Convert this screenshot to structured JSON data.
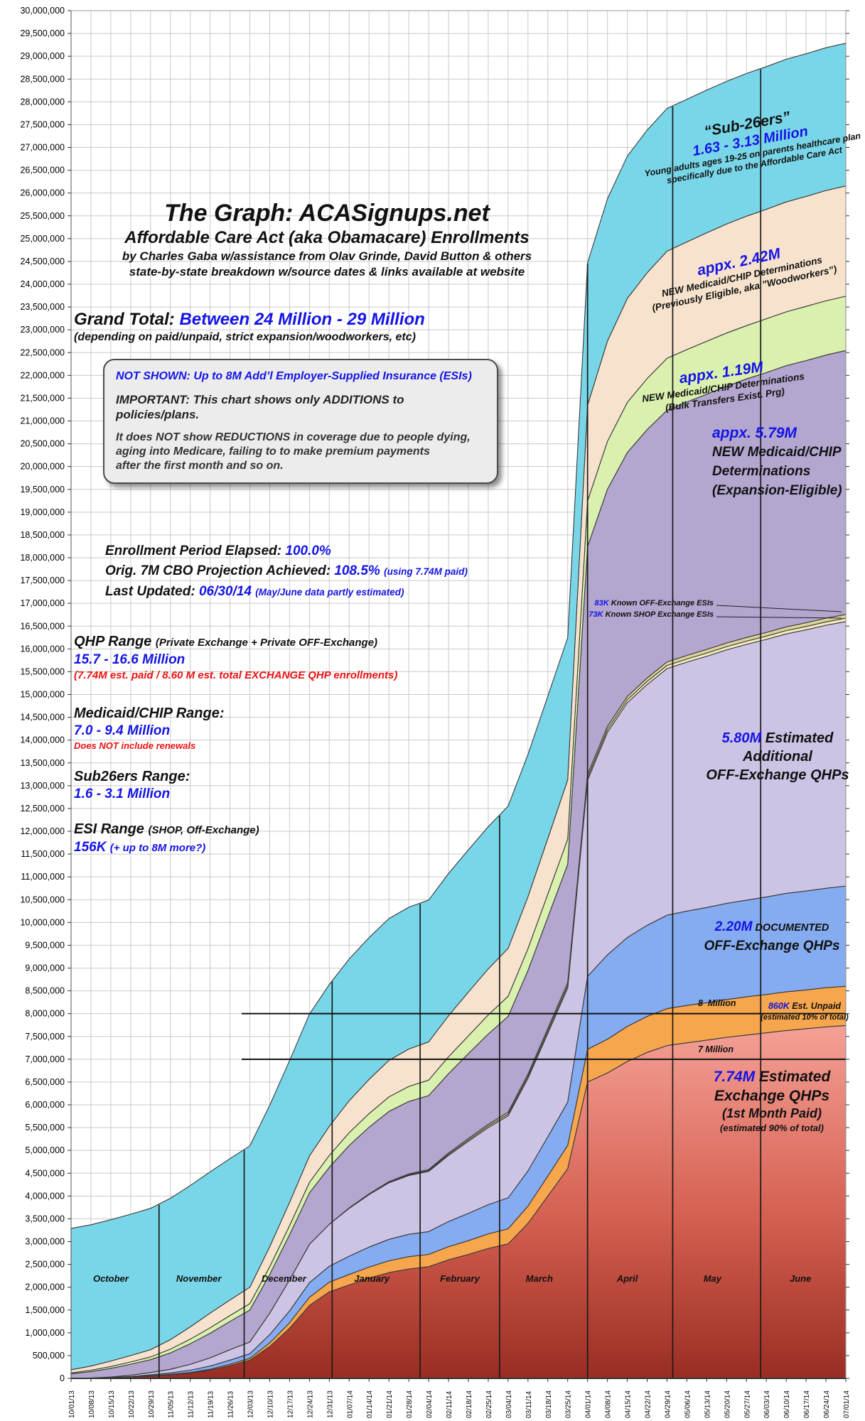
{
  "title_block": {
    "line1": "The Graph:   ACASignups.net",
    "line2": "Affordable Care Act (aka Obamacare) Enrollments",
    "line3": "by Charles Gaba w/assistance from Olav Grinde, David Button & others",
    "line4": "state-by-state breakdown w/source dates & links available at website"
  },
  "grand_total": {
    "label": "Grand Total: ",
    "value": "Between 24 Million - 29 Million",
    "sub": "(depending on paid/unpaid, strict expansion/woodworkers, etc)"
  },
  "note_box": {
    "line1": "NOT SHOWN: Up to 8M Add’l Employer-Supplied Insurance (ESIs)",
    "line2": "IMPORTANT: This chart shows only ADDITIONS to policies/plans.",
    "para1": "It does NOT show REDUCTIONS in coverage due to people dying,",
    "para2": "aging into Medicare, failing to to make premium payments",
    "para3": "after the first month and so on."
  },
  "stats": {
    "l1a": "Enrollment Period Elapsed: ",
    "l1b": "100.0%",
    "l2a": "Orig. 7M CBO Projection Achieved: ",
    "l2b": "108.5% ",
    "l2c": "(using 7.74M paid)",
    "l3a": "Last Updated: ",
    "l3b": "06/30/14 ",
    "l3c": "(May/June data partly estimated)"
  },
  "ranges": {
    "qhp": {
      "head": "QHP Range ",
      "head2": "(Private Exchange + Private OFF-Exchange)",
      "value": "15.7 - 16.6 Million",
      "note": "(7.74M est. paid / 8.60 M est. total EXCHANGE QHP enrollments)"
    },
    "medicaid": {
      "head": "Medicaid/CHIP Range:",
      "value": "7.0 - 9.4 Million",
      "note": "Does NOT include renewals"
    },
    "sub26": {
      "head": "Sub26ers Range:",
      "value": "1.6 - 3.1 Million"
    },
    "esi": {
      "head": "ESI Range ",
      "head2": "(SHOP, Off-Exchange)",
      "value": "156K ",
      "value2": "(+ up to 8M more?)"
    }
  },
  "band_labels": {
    "sub26": {
      "quote": "“Sub-26ers”",
      "value": "1.63 - 3.13 Million",
      "d1": "Young adults ages 19-25 on parents healthcare plan",
      "d2": "specifically due to the Affordable Care Act"
    },
    "woodworkers": {
      "value": "appx. 2.42M",
      "d1": "NEW Medicaid/CHIP Determinations",
      "d2": "(Previously Eligible, aka ”Woodworkers”)"
    },
    "bulk": {
      "value": "appx. 1.19M",
      "d1": "NEW Medicaid/CHIP Determinations",
      "d2": "(Bulk Transfers Exist. Prg)"
    },
    "expansion": {
      "value": "appx. 5.79M",
      "d1": "NEW Medicaid/CHIP",
      "d2": "Determinations",
      "d3": "(Expansion-Eligible)"
    },
    "esi_off": {
      "value": "83K",
      "desc": " Known OFF-Exchange ESIs"
    },
    "esi_shop": {
      "value": "73K",
      "desc": " Known SHOP Exchange ESIs"
    },
    "lavender": {
      "value": "5.80M",
      "d1": " Estimated",
      "d2": "Additional",
      "d3": "OFF-Exchange QHPs"
    },
    "blue_band": {
      "value": "2.20M",
      "d1": " DOCUMENTED",
      "d2": "OFF-Exchange QHPs"
    },
    "eight_million": "8  Million",
    "unpaid": {
      "value": "860K",
      "d1": " Est. Unpaid",
      "d2": "(estimated 10% of total)"
    },
    "seven_million": "7 Million",
    "paid": {
      "value": "7.74M",
      "d1": " Estimated",
      "d2": "Exchange QHPs",
      "d3": "(1st Month Paid)",
      "d4": "(estimated 90% of total)"
    }
  },
  "colors": {
    "accent_blue": "#1414e6",
    "accent_red": "#ee1111",
    "grid": "#c9c9c9"
  },
  "chart_data": {
    "type": "area",
    "stacked": true,
    "title": "The Graph: ACASignups.net — ACA Enrollments",
    "ylim": [
      0,
      30000000
    ],
    "ytick_step": 500000,
    "grid": true,
    "total_days": 273,
    "month_boundary_days": [
      31,
      61,
      92,
      123,
      151,
      182,
      212,
      243
    ],
    "month_labels": [
      {
        "label": "October",
        "mid_day": 14
      },
      {
        "label": "November",
        "mid_day": 45
      },
      {
        "label": "December",
        "mid_day": 75
      },
      {
        "label": "January",
        "mid_day": 106
      },
      {
        "label": "February",
        "mid_day": 137
      },
      {
        "label": "March",
        "mid_day": 165
      },
      {
        "label": "April",
        "mid_day": 196
      },
      {
        "label": "May",
        "mid_day": 226
      },
      {
        "label": "June",
        "mid_day": 257
      }
    ],
    "x_labels": [
      "10/01/13",
      "10/08/13",
      "10/15/13",
      "10/22/13",
      "10/29/13",
      "11/05/13",
      "11/12/13",
      "11/19/13",
      "11/26/13",
      "12/03/13",
      "12/10/13",
      "12/17/13",
      "12/24/13",
      "12/31/13",
      "01/07/14",
      "01/14/14",
      "01/21/14",
      "01/28/14",
      "02/04/14",
      "02/11/14",
      "02/18/14",
      "02/25/14",
      "03/04/14",
      "03/11/14",
      "03/18/14",
      "03/25/14",
      "04/01/14",
      "04/08/14",
      "04/15/14",
      "04/22/14",
      "04/29/14",
      "05/06/14",
      "05/13/14",
      "05/20/14",
      "05/27/14",
      "06/03/14",
      "06/10/14",
      "06/17/14",
      "06/24/14",
      "07/01/14"
    ],
    "units": "millions",
    "series": [
      {
        "name": "Estimated Exchange QHPs (1st Month Paid) — 7.74M",
        "color": "#d96052",
        "gradient": true,
        "values": [
          0.0,
          0.01,
          0.02,
          0.03,
          0.05,
          0.08,
          0.12,
          0.18,
          0.28,
          0.4,
          0.7,
          1.1,
          1.6,
          1.9,
          2.05,
          2.2,
          2.32,
          2.4,
          2.45,
          2.6,
          2.72,
          2.85,
          2.95,
          3.4,
          4.0,
          4.6,
          6.5,
          6.7,
          6.95,
          7.15,
          7.3,
          7.36,
          7.42,
          7.48,
          7.53,
          7.58,
          7.63,
          7.67,
          7.71,
          7.74
        ]
      },
      {
        "name": "Est. Unpaid Exchange QHPs — 860K",
        "color": "#f6a64c",
        "gradient": false,
        "values": [
          0.0,
          0.0,
          0.0,
          0.0,
          0.01,
          0.01,
          0.01,
          0.02,
          0.03,
          0.04,
          0.08,
          0.12,
          0.18,
          0.21,
          0.23,
          0.24,
          0.26,
          0.27,
          0.27,
          0.29,
          0.3,
          0.32,
          0.33,
          0.38,
          0.44,
          0.51,
          0.72,
          0.74,
          0.77,
          0.79,
          0.81,
          0.82,
          0.82,
          0.83,
          0.84,
          0.84,
          0.85,
          0.85,
          0.86,
          0.86
        ]
      },
      {
        "name": "Documented OFF-Exchange QHPs — 2.20M",
        "color": "#85acf0",
        "gradient": false,
        "values": [
          0.0,
          0.0,
          0.0,
          0.01,
          0.02,
          0.03,
          0.05,
          0.07,
          0.09,
          0.1,
          0.18,
          0.26,
          0.32,
          0.35,
          0.4,
          0.44,
          0.47,
          0.49,
          0.5,
          0.55,
          0.6,
          0.64,
          0.68,
          0.77,
          0.86,
          0.95,
          1.6,
          1.85,
          1.95,
          2.0,
          2.05,
          2.07,
          2.09,
          2.11,
          2.12,
          2.14,
          2.16,
          2.17,
          2.18,
          2.2
        ]
      },
      {
        "name": "Estimated Additional OFF-Exchange QHPs — 5.80M",
        "color": "#cdc3e4",
        "gradient": false,
        "values": [
          0.0,
          0.0,
          0.01,
          0.03,
          0.05,
          0.08,
          0.13,
          0.18,
          0.23,
          0.26,
          0.47,
          0.68,
          0.84,
          0.92,
          1.05,
          1.15,
          1.24,
          1.29,
          1.32,
          1.45,
          1.58,
          1.69,
          1.8,
          2.03,
          2.27,
          2.5,
          4.3,
          4.88,
          5.15,
          5.28,
          5.41,
          5.46,
          5.51,
          5.56,
          5.61,
          5.65,
          5.69,
          5.73,
          5.77,
          5.8
        ]
      },
      {
        "name": "Known SHOP Exchange ESIs — 73K",
        "color": "#f2ecc0",
        "gradient": false,
        "values": [
          0,
          0,
          0,
          0,
          0,
          0,
          0,
          0,
          0,
          0,
          0,
          0,
          0,
          0,
          0.005,
          0.008,
          0.012,
          0.016,
          0.02,
          0.025,
          0.03,
          0.034,
          0.038,
          0.045,
          0.05,
          0.055,
          0.06,
          0.062,
          0.065,
          0.066,
          0.068,
          0.069,
          0.07,
          0.07,
          0.071,
          0.071,
          0.072,
          0.072,
          0.073,
          0.073
        ]
      },
      {
        "name": "Known OFF-Exchange ESIs — 83K",
        "color": "#ddd29a",
        "gradient": false,
        "values": [
          0,
          0,
          0,
          0,
          0,
          0,
          0,
          0,
          0,
          0,
          0,
          0,
          0,
          0,
          0.005,
          0.009,
          0.013,
          0.018,
          0.022,
          0.028,
          0.033,
          0.038,
          0.043,
          0.05,
          0.056,
          0.062,
          0.068,
          0.07,
          0.073,
          0.075,
          0.077,
          0.078,
          0.079,
          0.08,
          0.081,
          0.081,
          0.082,
          0.082,
          0.083,
          0.083
        ]
      },
      {
        "name": "NEW Medicaid/CHIP Determinations (Expansion-Eligible) — 5.79M",
        "color": "#b3a6cf",
        "gradient": false,
        "values": [
          0.1,
          0.14,
          0.19,
          0.24,
          0.28,
          0.36,
          0.45,
          0.54,
          0.62,
          0.7,
          0.85,
          0.99,
          1.13,
          1.25,
          1.37,
          1.46,
          1.54,
          1.59,
          1.62,
          1.74,
          1.86,
          1.98,
          2.1,
          2.27,
          2.44,
          2.6,
          5.0,
          5.2,
          5.35,
          5.45,
          5.52,
          5.56,
          5.6,
          5.63,
          5.67,
          5.7,
          5.73,
          5.75,
          5.77,
          5.79
        ]
      },
      {
        "name": "NEW Medicaid/CHIP Determinations (Bulk Transfers Exist. Prg) — 1.19M",
        "color": "#daf0ae",
        "gradient": false,
        "values": [
          0.02,
          0.03,
          0.04,
          0.05,
          0.06,
          0.08,
          0.1,
          0.12,
          0.13,
          0.14,
          0.17,
          0.2,
          0.23,
          0.26,
          0.28,
          0.3,
          0.32,
          0.33,
          0.34,
          0.37,
          0.39,
          0.42,
          0.44,
          0.48,
          0.51,
          0.55,
          1.0,
          1.05,
          1.1,
          1.12,
          1.14,
          1.15,
          1.16,
          1.17,
          1.17,
          1.18,
          1.18,
          1.19,
          1.19,
          1.19
        ]
      },
      {
        "name": "NEW Medicaid/CHIP Determinations (Previously Eligible, aka Woodworkers) — 2.42M",
        "color": "#f7e3cd",
        "gradient": false,
        "values": [
          0.07,
          0.09,
          0.12,
          0.14,
          0.16,
          0.21,
          0.27,
          0.32,
          0.34,
          0.36,
          0.44,
          0.51,
          0.58,
          0.64,
          0.7,
          0.75,
          0.8,
          0.82,
          0.84,
          0.9,
          0.96,
          1.01,
          1.05,
          1.14,
          1.22,
          1.3,
          2.1,
          2.2,
          2.28,
          2.32,
          2.35,
          2.36,
          2.38,
          2.39,
          2.4,
          2.4,
          2.41,
          2.41,
          2.42,
          2.42
        ]
      },
      {
        "name": "Sub-26ers — 1.63-3.13M",
        "color": "#79d6e8",
        "gradient": false,
        "values": [
          3.1,
          3.1,
          3.1,
          3.1,
          3.1,
          3.1,
          3.1,
          3.1,
          3.1,
          3.1,
          3.1,
          3.11,
          3.11,
          3.11,
          3.11,
          3.11,
          3.11,
          3.11,
          3.11,
          3.12,
          3.12,
          3.12,
          3.12,
          3.12,
          3.12,
          3.12,
          3.12,
          3.12,
          3.12,
          3.13,
          3.13,
          3.13,
          3.13,
          3.13,
          3.13,
          3.13,
          3.13,
          3.13,
          3.13,
          3.13
        ]
      }
    ],
    "hlines": [
      {
        "label": "7 Million",
        "value": 7000000
      },
      {
        "label": "8 Million",
        "value": 8000000
      }
    ]
  }
}
